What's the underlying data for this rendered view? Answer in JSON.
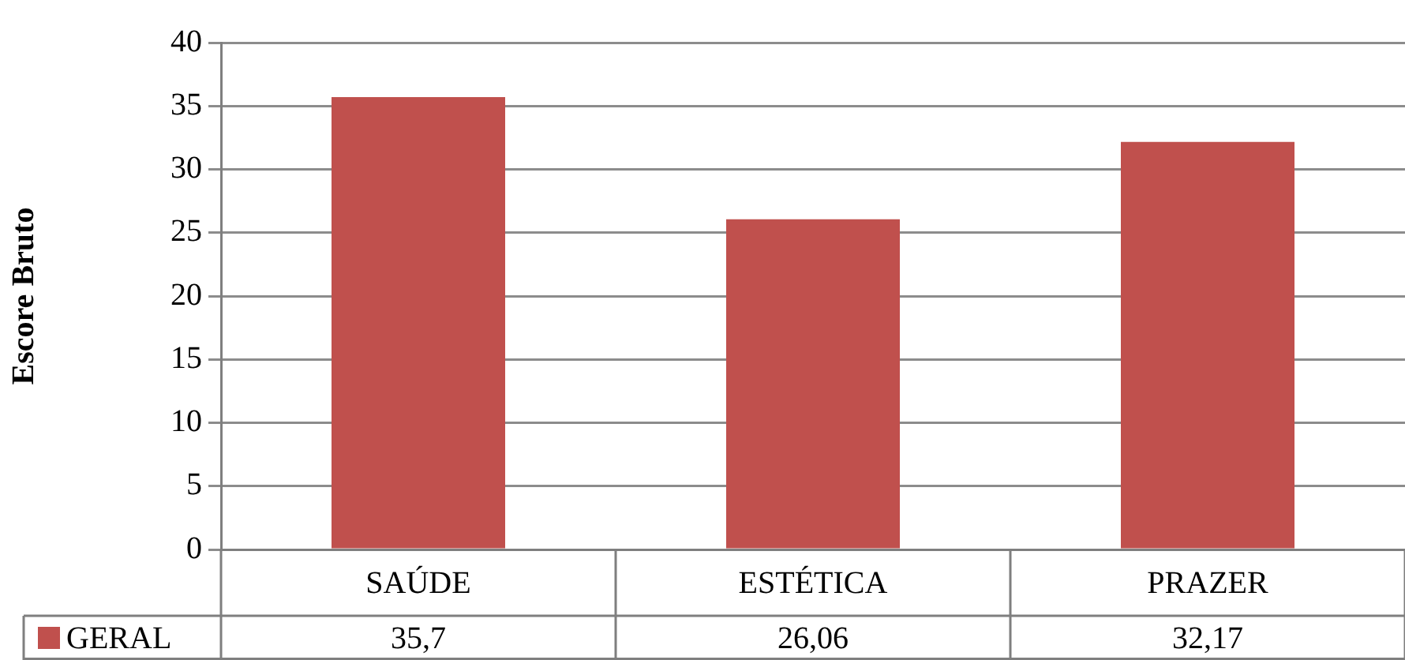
{
  "chart_data": {
    "type": "bar",
    "ylabel": "Escore Bruto",
    "categories": [
      "SAÚDE",
      "ESTÉTICA",
      "PRAZER"
    ],
    "series": [
      {
        "name": "GERAL",
        "color": "#c0504d",
        "values": [
          35.7,
          26.06,
          32.17
        ],
        "value_labels": [
          "35,7",
          "26,06",
          "32,17"
        ]
      }
    ],
    "ylim": [
      0,
      40
    ],
    "yticks": [
      0,
      5,
      10,
      15,
      20,
      25,
      30,
      35,
      40
    ],
    "grid": "y",
    "legend": "bottom left"
  }
}
